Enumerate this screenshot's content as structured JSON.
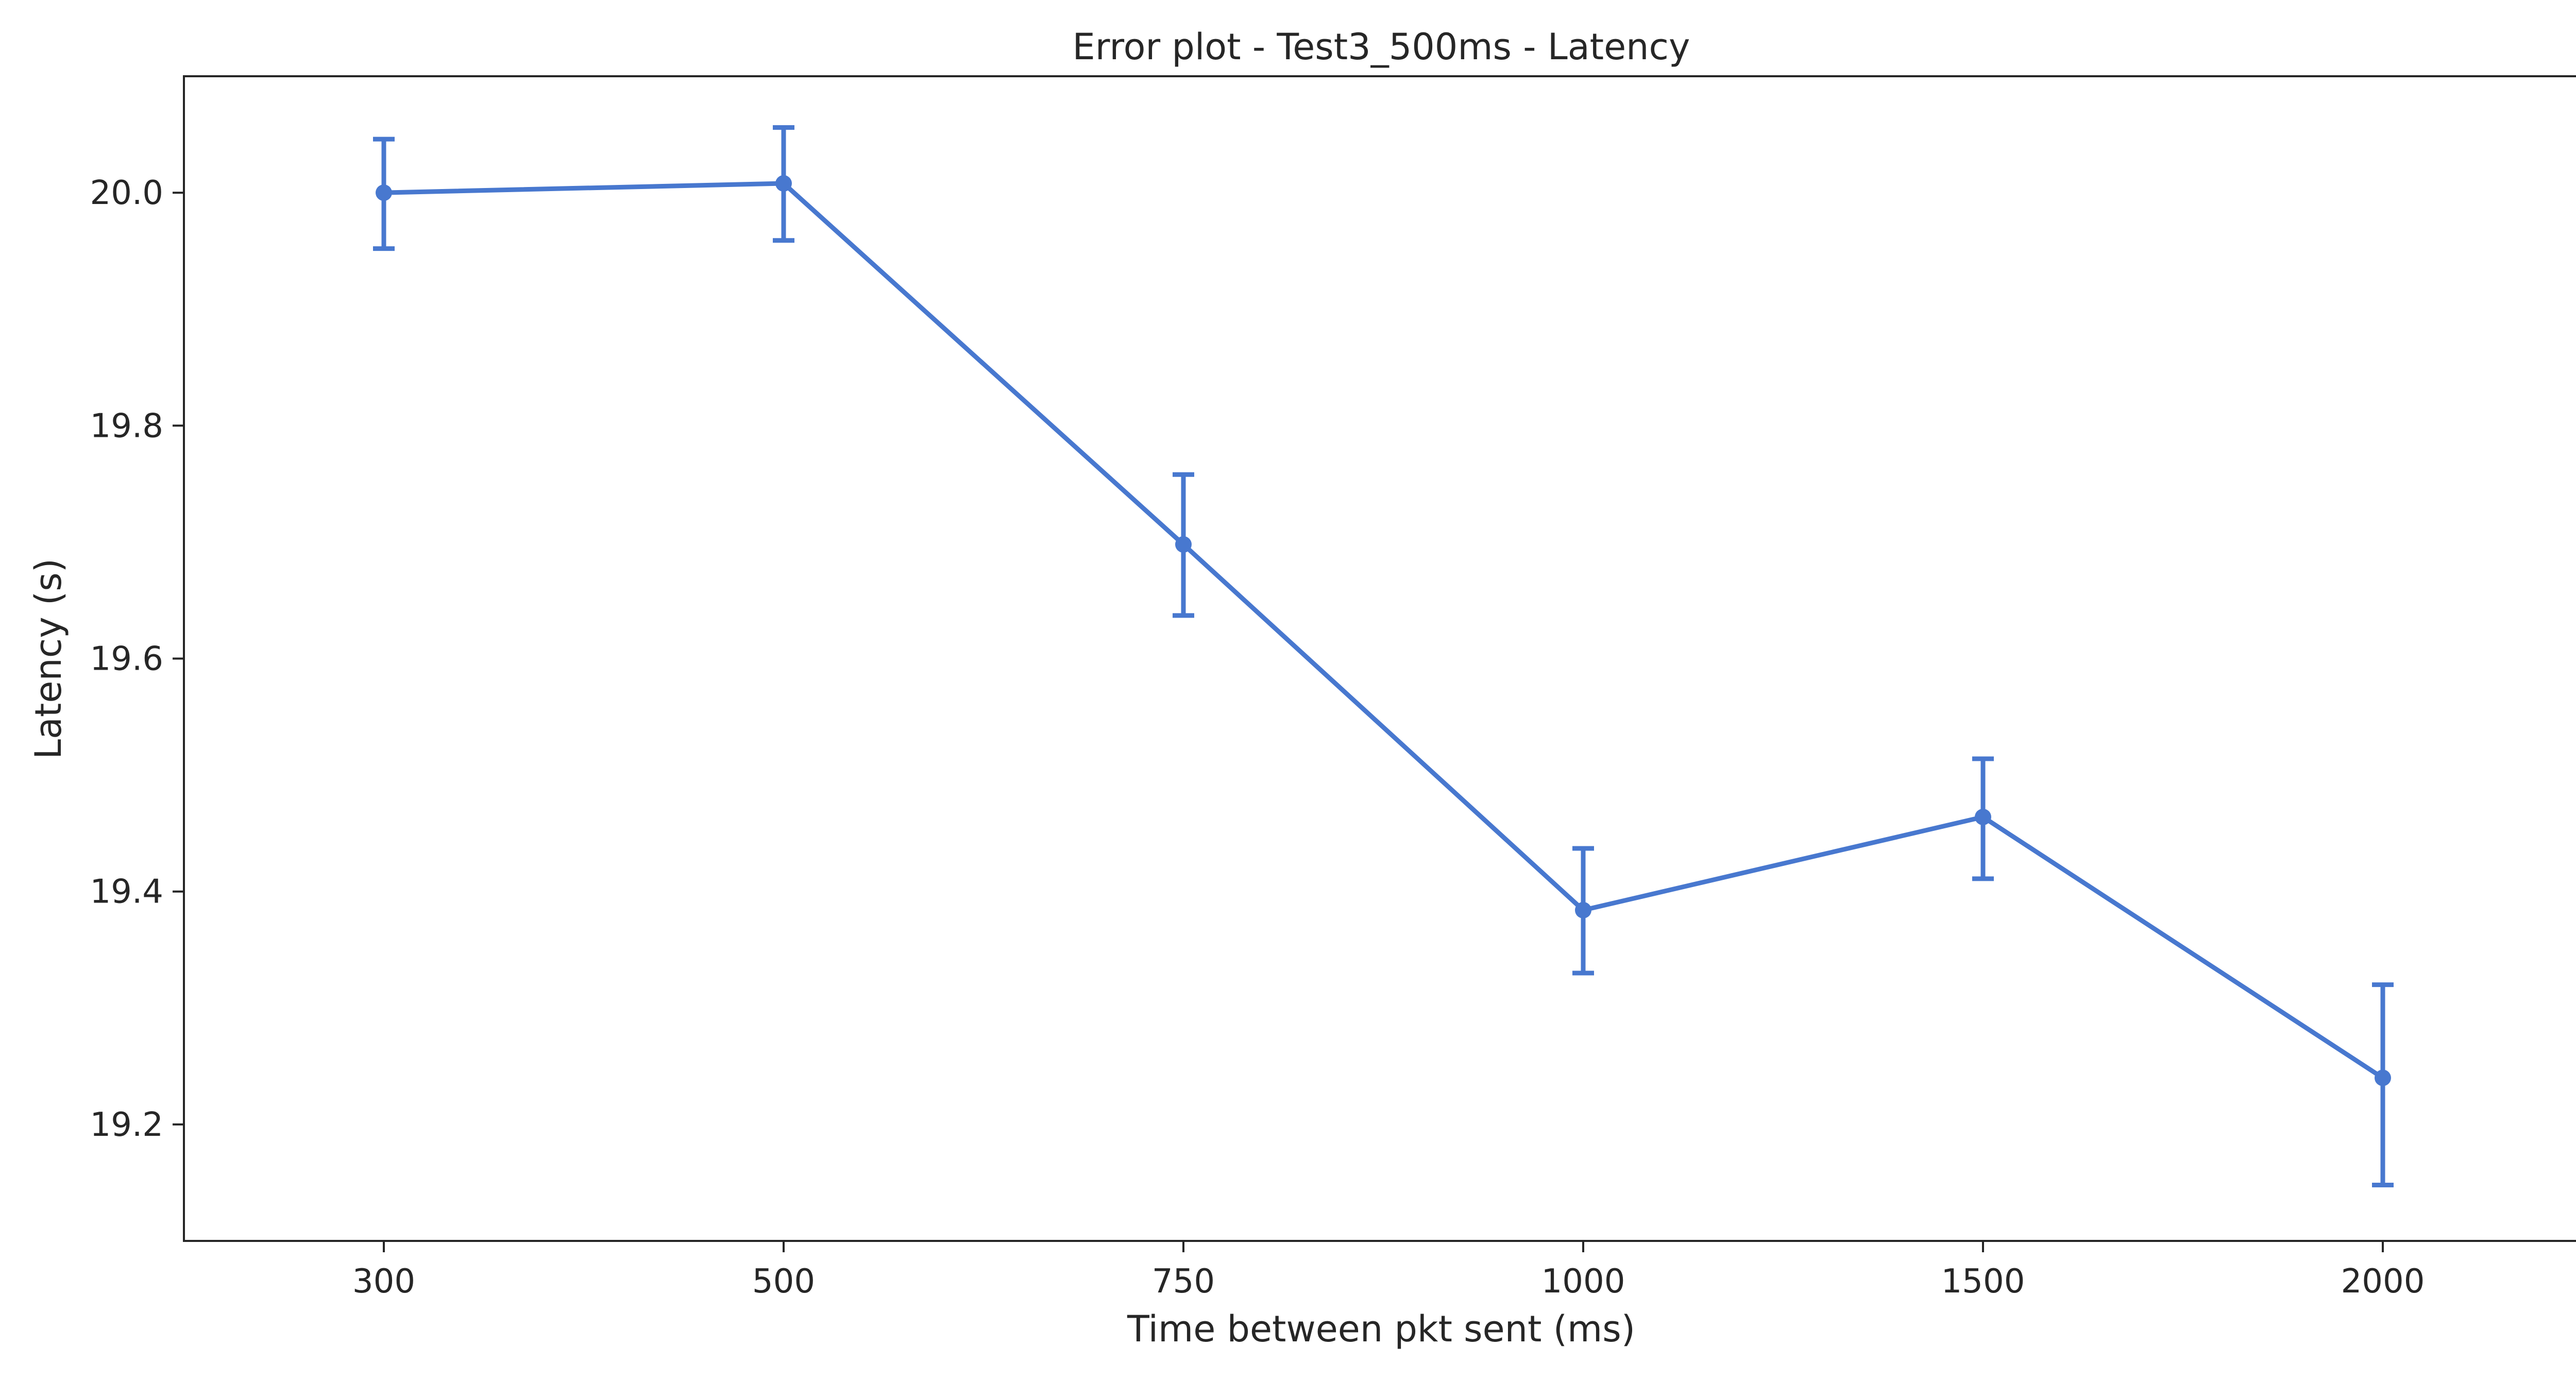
{
  "chart_data": {
    "type": "line",
    "title": "Error plot - Test3_500ms - Latency",
    "xlabel": "Time between pkt sent (ms)",
    "ylabel": "Latency (s)",
    "categories": [
      "300",
      "500",
      "750",
      "1000",
      "1500",
      "2000"
    ],
    "series": [
      {
        "values": [
          20.0,
          20.008,
          19.698,
          19.384,
          19.464,
          19.24
        ],
        "err_low": [
          19.952,
          19.959,
          19.637,
          19.33,
          19.411,
          19.148
        ],
        "err_high": [
          20.046,
          20.056,
          19.758,
          19.437,
          19.514,
          19.32
        ]
      }
    ],
    "ylim": [
      19.1,
      20.1
    ],
    "yticks": [
      "19.2",
      "19.4",
      "19.6",
      "19.8",
      "20.0"
    ],
    "grid": false,
    "error_bars": true,
    "color": "#4878cf"
  }
}
